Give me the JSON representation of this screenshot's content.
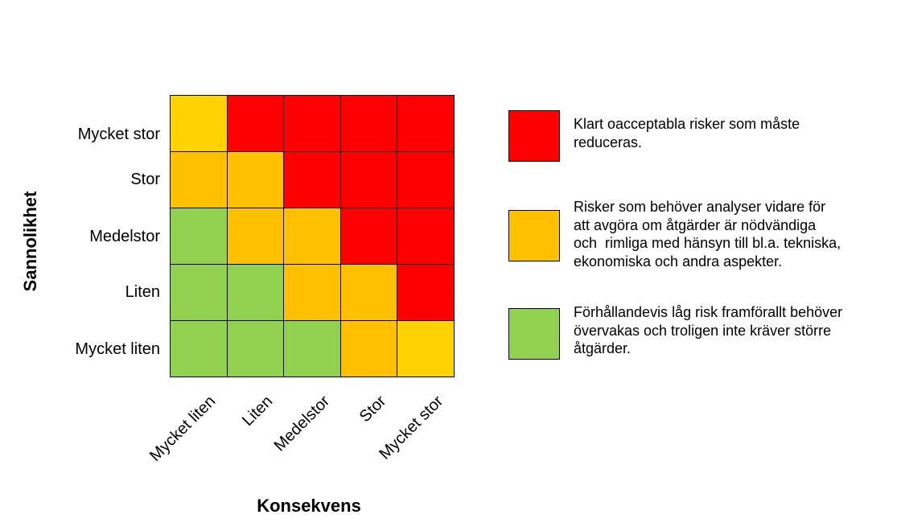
{
  "colors": {
    "red": "#ff0000",
    "orange": "#ffc000",
    "yellow": "#ffd200",
    "green": "#92d050"
  },
  "y_axis": {
    "title": "Sannolikhet",
    "labels": [
      "Mycket stor",
      "Stor",
      "Medelstor",
      "Liten",
      "Mycket liten"
    ]
  },
  "x_axis": {
    "title": "Konsekvens",
    "labels": [
      "Mycket liten",
      "Liten",
      "Medelstor",
      "Stor",
      "Mycket stor"
    ]
  },
  "matrix": [
    [
      "yellow",
      "red",
      "red",
      "red",
      "red"
    ],
    [
      "orange",
      "orange",
      "red",
      "red",
      "red"
    ],
    [
      "green",
      "orange",
      "orange",
      "red",
      "red"
    ],
    [
      "green",
      "green",
      "orange",
      "orange",
      "red"
    ],
    [
      "green",
      "green",
      "green",
      "orange",
      "yellow"
    ]
  ],
  "legend": [
    {
      "color": "red",
      "lines": [
        "Klart oacceptabla risker som måste",
        "reduceras."
      ]
    },
    {
      "color": "orange",
      "lines": [
        "Risker som behöver analyser vidare för",
        "att avgöra om åtgärder är nödvändiga",
        "och  rimliga med hänsyn till bl.a. tekniska,",
        "ekonomiska och andra aspekter."
      ]
    },
    {
      "color": "green",
      "lines": [
        "Förhållandevis låg risk framförallt behöver",
        "övervakas och troligen inte kräver större",
        "åtgärder."
      ]
    }
  ]
}
